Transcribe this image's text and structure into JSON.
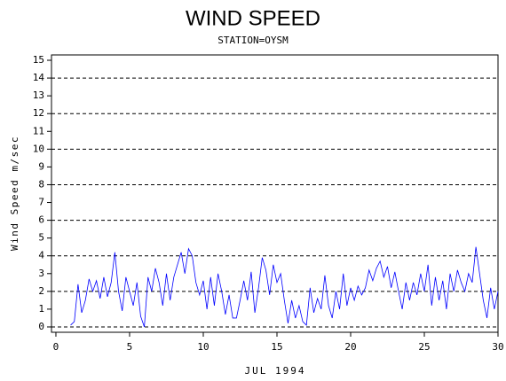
{
  "chart_data": {
    "type": "line",
    "title": "WIND SPEED",
    "subtitle": "STATION=OYSM",
    "x_label": "JUL 1994",
    "y_label": "Wind Speed m/sec",
    "xlim": [
      -0.3,
      30
    ],
    "ylim": [
      -0.3,
      15.3
    ],
    "xticks": [
      0,
      5,
      10,
      15,
      20,
      25,
      30
    ],
    "yticks": [
      0,
      1,
      2,
      3,
      4,
      5,
      6,
      7,
      8,
      9,
      10,
      11,
      12,
      13,
      14,
      15
    ],
    "ygrid": [
      0,
      2,
      4,
      6,
      8,
      10,
      12,
      14
    ],
    "series": [
      {
        "color": "#0000ff",
        "x": [
          1,
          1.25,
          1.5,
          1.75,
          2,
          2.25,
          2.5,
          2.75,
          3,
          3.25,
          3.5,
          3.75,
          4,
          4.25,
          4.5,
          4.75,
          5,
          5.25,
          5.5,
          5.75,
          6,
          6.25,
          6.5,
          6.75,
          7,
          7.25,
          7.5,
          7.75,
          8,
          8.25,
          8.5,
          8.75,
          9,
          9.25,
          9.5,
          9.75,
          10,
          10.25,
          10.5,
          10.75,
          11,
          11.25,
          11.5,
          11.75,
          12,
          12.25,
          12.5,
          12.75,
          13,
          13.25,
          13.5,
          13.75,
          14,
          14.25,
          14.5,
          14.75,
          15,
          15.25,
          15.5,
          15.75,
          16,
          16.25,
          16.5,
          16.75,
          17,
          17.25,
          17.5,
          17.75,
          18,
          18.25,
          18.5,
          18.75,
          19,
          19.25,
          19.5,
          19.75,
          20,
          20.25,
          20.5,
          20.75,
          21,
          21.25,
          21.5,
          21.75,
          22,
          22.25,
          22.5,
          22.75,
          23,
          23.25,
          23.5,
          23.75,
          24,
          24.25,
          24.5,
          24.75,
          25,
          25.25,
          25.5,
          25.75,
          26,
          26.25,
          26.5,
          26.75,
          27,
          27.25,
          27.5,
          27.75,
          28,
          28.25,
          28.5,
          28.75,
          29,
          29.25,
          29.5,
          29.75,
          30
        ],
        "values": [
          0.1,
          0.3,
          2.4,
          0.8,
          1.5,
          2.7,
          2.0,
          2.6,
          1.6,
          2.8,
          1.7,
          2.5,
          4.2,
          2.0,
          0.9,
          2.8,
          2.0,
          1.2,
          2.5,
          0.6,
          0.0,
          2.8,
          2.0,
          3.3,
          2.5,
          1.2,
          3.0,
          1.5,
          2.8,
          3.5,
          4.2,
          3.0,
          4.4,
          4.0,
          2.5,
          1.8,
          2.6,
          1.0,
          2.8,
          1.2,
          3.0,
          2.0,
          0.7,
          1.8,
          0.5,
          0.5,
          1.5,
          2.6,
          1.5,
          3.1,
          0.8,
          2.2,
          3.9,
          3.2,
          1.8,
          3.5,
          2.5,
          3.0,
          1.5,
          0.2,
          1.5,
          0.5,
          1.2,
          0.3,
          0.1,
          2.2,
          0.8,
          1.6,
          1.0,
          2.9,
          1.2,
          0.5,
          2.0,
          1.0,
          3.0,
          1.2,
          2.2,
          1.5,
          2.3,
          1.8,
          2.2,
          3.2,
          2.6,
          3.3,
          3.7,
          2.8,
          3.4,
          2.2,
          3.1,
          2.0,
          1.0,
          2.5,
          1.5,
          2.5,
          1.8,
          3.0,
          2.0,
          3.5,
          1.2,
          2.8,
          1.5,
          2.6,
          1.0,
          3.0,
          2.0,
          3.2,
          2.5,
          2.0,
          3.0,
          2.5,
          4.5,
          3.0,
          1.5,
          0.5,
          2.2,
          1.0,
          2.0
        ]
      }
    ]
  }
}
